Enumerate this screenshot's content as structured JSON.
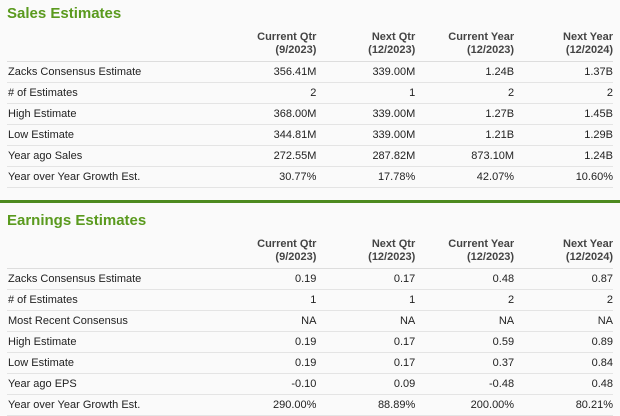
{
  "sales": {
    "title": "Sales Estimates",
    "headers": [
      {
        "l1": "Current Qtr",
        "l2": "(9/2023)"
      },
      {
        "l1": "Next Qtr",
        "l2": "(12/2023)"
      },
      {
        "l1": "Current Year",
        "l2": "(12/2023)"
      },
      {
        "l1": "Next Year",
        "l2": "(12/2024)"
      }
    ],
    "rows": [
      {
        "label": "Zacks Consensus Estimate",
        "v": [
          "356.41M",
          "339.00M",
          "1.24B",
          "1.37B"
        ]
      },
      {
        "label": "# of Estimates",
        "v": [
          "2",
          "1",
          "2",
          "2"
        ]
      },
      {
        "label": "High Estimate",
        "v": [
          "368.00M",
          "339.00M",
          "1.27B",
          "1.45B"
        ]
      },
      {
        "label": "Low Estimate",
        "v": [
          "344.81M",
          "339.00M",
          "1.21B",
          "1.29B"
        ]
      },
      {
        "label": "Year ago Sales",
        "v": [
          "272.55M",
          "287.82M",
          "873.10M",
          "1.24B"
        ]
      },
      {
        "label": "Year over Year Growth Est.",
        "v": [
          "30.77%",
          "17.78%",
          "42.07%",
          "10.60%"
        ]
      }
    ]
  },
  "earnings": {
    "title": "Earnings Estimates",
    "headers": [
      {
        "l1": "Current Qtr",
        "l2": "(9/2023)"
      },
      {
        "l1": "Next Qtr",
        "l2": "(12/2023)"
      },
      {
        "l1": "Current Year",
        "l2": "(12/2023)"
      },
      {
        "l1": "Next Year",
        "l2": "(12/2024)"
      }
    ],
    "rows": [
      {
        "label": "Zacks Consensus Estimate",
        "v": [
          "0.19",
          "0.17",
          "0.48",
          "0.87"
        ]
      },
      {
        "label": "# of Estimates",
        "v": [
          "1",
          "1",
          "2",
          "2"
        ]
      },
      {
        "label": "Most Recent Consensus",
        "v": [
          "NA",
          "NA",
          "NA",
          "NA"
        ]
      },
      {
        "label": "High Estimate",
        "v": [
          "0.19",
          "0.17",
          "0.59",
          "0.89"
        ]
      },
      {
        "label": "Low Estimate",
        "v": [
          "0.19",
          "0.17",
          "0.37",
          "0.84"
        ]
      },
      {
        "label": "Year ago EPS",
        "v": [
          "-0.10",
          "0.09",
          "-0.48",
          "0.48"
        ]
      },
      {
        "label": "Year over Year Growth Est.",
        "v": [
          "290.00%",
          "88.89%",
          "200.00%",
          "80.21%"
        ]
      }
    ]
  },
  "colors": {
    "accent": "#5a9a1e",
    "divider": "#4d8a1f"
  }
}
